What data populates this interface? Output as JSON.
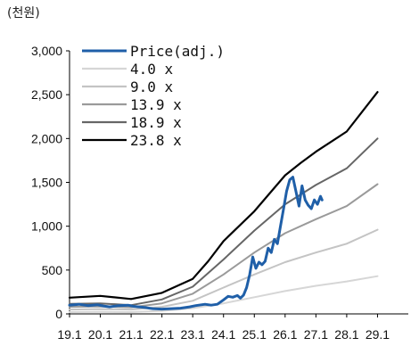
{
  "chart_data": {
    "type": "line",
    "unit_label": "(천원)",
    "x_ticks": [
      "19.1",
      "20.1",
      "21.1",
      "22.1",
      "23.1",
      "24.1",
      "25.1",
      "26.1",
      "27.1",
      "28.1",
      "29.1"
    ],
    "y_ticks": [
      "3,000",
      "2,500",
      "2,000",
      "1,500",
      "1,000",
      "500",
      "0"
    ],
    "ylim": [
      0,
      3000
    ],
    "xlim": [
      2019.0,
      2030.0
    ],
    "grid": false,
    "legend_position": "top-left",
    "series": [
      {
        "name": "Price(adj.)",
        "color": "#1f5fa8",
        "width": 3,
        "points": [
          [
            2019.0,
            100
          ],
          [
            2019.3,
            110
          ],
          [
            2019.6,
            95
          ],
          [
            2019.9,
            105
          ],
          [
            2020.1,
            90
          ],
          [
            2020.3,
            80
          ],
          [
            2020.6,
            95
          ],
          [
            2020.9,
            100
          ],
          [
            2021.1,
            85
          ],
          [
            2021.4,
            75
          ],
          [
            2021.7,
            60
          ],
          [
            2022.0,
            55
          ],
          [
            2022.3,
            60
          ],
          [
            2022.6,
            65
          ],
          [
            2022.9,
            80
          ],
          [
            2023.1,
            95
          ],
          [
            2023.4,
            110
          ],
          [
            2023.6,
            100
          ],
          [
            2023.8,
            110
          ],
          [
            2024.0,
            160
          ],
          [
            2024.15,
            200
          ],
          [
            2024.3,
            190
          ],
          [
            2024.45,
            210
          ],
          [
            2024.55,
            180
          ],
          [
            2024.65,
            215
          ],
          [
            2024.75,
            300
          ],
          [
            2024.85,
            450
          ],
          [
            2024.95,
            650
          ],
          [
            2025.05,
            520
          ],
          [
            2025.15,
            590
          ],
          [
            2025.25,
            560
          ],
          [
            2025.35,
            600
          ],
          [
            2025.45,
            750
          ],
          [
            2025.55,
            700
          ],
          [
            2025.65,
            850
          ],
          [
            2025.75,
            800
          ],
          [
            2025.85,
            1000
          ],
          [
            2025.95,
            1200
          ],
          [
            2026.05,
            1400
          ],
          [
            2026.15,
            1530
          ],
          [
            2026.25,
            1560
          ],
          [
            2026.35,
            1400
          ],
          [
            2026.45,
            1230
          ],
          [
            2026.55,
            1460
          ],
          [
            2026.65,
            1300
          ],
          [
            2026.75,
            1240
          ],
          [
            2026.85,
            1200
          ],
          [
            2026.95,
            1300
          ],
          [
            2027.05,
            1250
          ],
          [
            2027.15,
            1340
          ],
          [
            2027.2,
            1300
          ]
        ]
      },
      {
        "name": "4.0 x",
        "color": "#d6d6d6",
        "width": 2,
        "points": [
          [
            2019.0,
            20
          ],
          [
            2020.0,
            22
          ],
          [
            2021.0,
            20
          ],
          [
            2022.0,
            35
          ],
          [
            2023.0,
            65
          ],
          [
            2024.0,
            120
          ],
          [
            2025.0,
            190
          ],
          [
            2026.0,
            260
          ],
          [
            2027.0,
            320
          ],
          [
            2028.0,
            370
          ],
          [
            2029.0,
            430
          ]
        ]
      },
      {
        "name": "9.0 x",
        "color": "#c4c4c4",
        "width": 2,
        "points": [
          [
            2019.0,
            50
          ],
          [
            2020.0,
            55
          ],
          [
            2021.0,
            50
          ],
          [
            2022.0,
            80
          ],
          [
            2023.0,
            150
          ],
          [
            2024.0,
            300
          ],
          [
            2025.0,
            450
          ],
          [
            2026.0,
            590
          ],
          [
            2027.0,
            700
          ],
          [
            2028.0,
            800
          ],
          [
            2029.0,
            960
          ]
        ]
      },
      {
        "name": "13.9 x",
        "color": "#9a9a9a",
        "width": 2,
        "points": [
          [
            2019.0,
            80
          ],
          [
            2020.0,
            85
          ],
          [
            2021.0,
            75
          ],
          [
            2022.0,
            120
          ],
          [
            2023.0,
            230
          ],
          [
            2024.0,
            450
          ],
          [
            2025.0,
            700
          ],
          [
            2026.0,
            920
          ],
          [
            2027.0,
            1080
          ],
          [
            2028.0,
            1230
          ],
          [
            2029.0,
            1480
          ]
        ]
      },
      {
        "name": "18.9 x",
        "color": "#666666",
        "width": 2,
        "points": [
          [
            2019.0,
            115
          ],
          [
            2020.0,
            120
          ],
          [
            2021.0,
            100
          ],
          [
            2022.0,
            165
          ],
          [
            2023.0,
            310
          ],
          [
            2024.0,
            620
          ],
          [
            2025.0,
            950
          ],
          [
            2026.0,
            1250
          ],
          [
            2027.0,
            1470
          ],
          [
            2028.0,
            1660
          ],
          [
            2029.0,
            2000
          ]
        ]
      },
      {
        "name": "23.8 x",
        "color": "#000000",
        "width": 2.2,
        "points": [
          [
            2019.0,
            185
          ],
          [
            2019.5,
            195
          ],
          [
            2020.0,
            205
          ],
          [
            2021.0,
            170
          ],
          [
            2022.0,
            240
          ],
          [
            2023.0,
            400
          ],
          [
            2023.5,
            600
          ],
          [
            2024.0,
            830
          ],
          [
            2025.0,
            1170
          ],
          [
            2026.0,
            1580
          ],
          [
            2026.5,
            1720
          ],
          [
            2027.0,
            1850
          ],
          [
            2028.0,
            2080
          ],
          [
            2029.0,
            2530
          ]
        ]
      }
    ]
  }
}
